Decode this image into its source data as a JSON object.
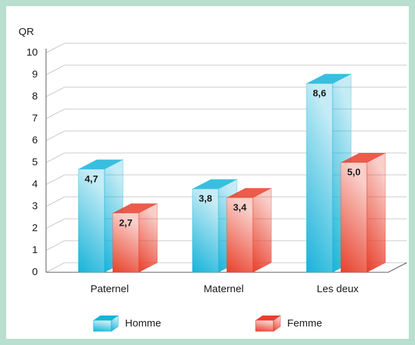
{
  "chart_data": {
    "type": "bar3d",
    "y_label": "QR",
    "categories": [
      "Paternel",
      "Maternel",
      "Les deux"
    ],
    "series": [
      {
        "name": "Homme",
        "color": "#17b3d9",
        "values": [
          4.7,
          3.8,
          8.6
        ],
        "value_labels": [
          "4,7",
          "3,8",
          "8,6"
        ]
      },
      {
        "name": "Femme",
        "color": "#e8402c",
        "values": [
          2.7,
          3.4,
          5.0
        ],
        "value_labels": [
          "2,7",
          "3,4",
          "5,0"
        ]
      }
    ],
    "ylim": [
      0,
      10
    ],
    "yticks": [
      0,
      1,
      2,
      3,
      4,
      5,
      6,
      7,
      8,
      9,
      10
    ],
    "grid": true,
    "legend": "bottom"
  }
}
